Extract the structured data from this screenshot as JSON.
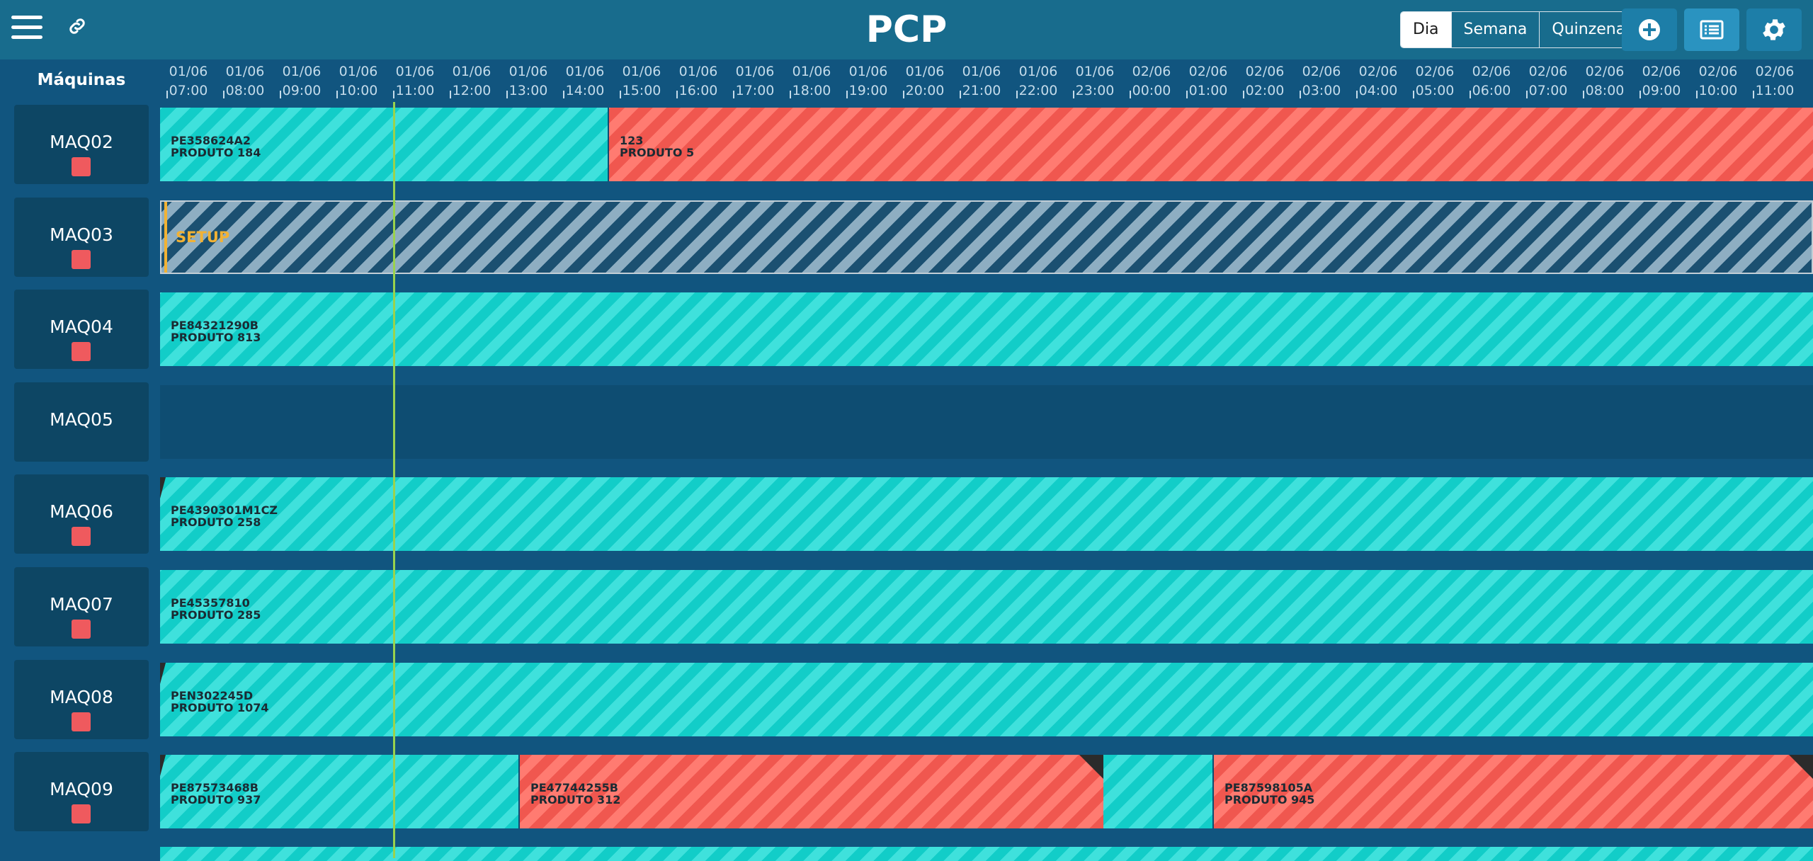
{
  "header": {
    "title": "PCP",
    "view_options": [
      "Dia",
      "Semana",
      "Quinzena"
    ],
    "active_view": "Dia",
    "icons": [
      "menu-icon",
      "link-icon",
      "add-icon",
      "list-icon",
      "gear-icon"
    ]
  },
  "timeline": {
    "machines_title": "Máquinas",
    "ticks": [
      {
        "date": "01/06",
        "time": "07:00"
      },
      {
        "date": "01/06",
        "time": "08:00"
      },
      {
        "date": "01/06",
        "time": "09:00"
      },
      {
        "date": "01/06",
        "time": "10:00"
      },
      {
        "date": "01/06",
        "time": "11:00"
      },
      {
        "date": "01/06",
        "time": "12:00"
      },
      {
        "date": "01/06",
        "time": "13:00"
      },
      {
        "date": "01/06",
        "time": "14:00"
      },
      {
        "date": "01/06",
        "time": "15:00"
      },
      {
        "date": "01/06",
        "time": "16:00"
      },
      {
        "date": "01/06",
        "time": "17:00"
      },
      {
        "date": "01/06",
        "time": "18:00"
      },
      {
        "date": "01/06",
        "time": "19:00"
      },
      {
        "date": "01/06",
        "time": "20:00"
      },
      {
        "date": "01/06",
        "time": "21:00"
      },
      {
        "date": "01/06",
        "time": "22:00"
      },
      {
        "date": "01/06",
        "time": "23:00"
      },
      {
        "date": "02/06",
        "time": "00:00"
      },
      {
        "date": "02/06",
        "time": "01:00"
      },
      {
        "date": "02/06",
        "time": "02:00"
      },
      {
        "date": "02/06",
        "time": "03:00"
      },
      {
        "date": "02/06",
        "time": "04:00"
      },
      {
        "date": "02/06",
        "time": "05:00"
      },
      {
        "date": "02/06",
        "time": "06:00"
      },
      {
        "date": "02/06",
        "time": "07:00"
      },
      {
        "date": "02/06",
        "time": "08:00"
      },
      {
        "date": "02/06",
        "time": "09:00"
      },
      {
        "date": "02/06",
        "time": "10:00"
      },
      {
        "date": "02/06",
        "time": "11:00"
      }
    ]
  },
  "colors": {
    "header_bg": "#186c8d",
    "page_bg": "#11557f",
    "job_cyan": "#12cdc8",
    "job_red": "#f0574f",
    "setup_accent": "#f2b234",
    "status_red": "#ef5a5e",
    "now_line": "#9ad24d"
  },
  "machines": [
    {
      "name": "MAQ02",
      "status": true,
      "jobs": [
        {
          "type": "cyan",
          "order": "PE358624A2",
          "product": "PRODUTO 184"
        },
        {
          "type": "red",
          "order": "123",
          "product": "PRODUTO 5"
        }
      ]
    },
    {
      "name": "MAQ03",
      "status": true,
      "jobs": [
        {
          "type": "setup",
          "label": "SETUP"
        }
      ]
    },
    {
      "name": "MAQ04",
      "status": true,
      "jobs": [
        {
          "type": "cyan",
          "order": "PE84321290B",
          "product": "PRODUTO 813"
        }
      ]
    },
    {
      "name": "MAQ05",
      "status": false,
      "jobs": []
    },
    {
      "name": "MAQ06",
      "status": true,
      "jobs": [
        {
          "type": "cyan",
          "order": "PE4390301M1CZ",
          "product": "PRODUTO 258"
        }
      ]
    },
    {
      "name": "MAQ07",
      "status": true,
      "jobs": [
        {
          "type": "cyan",
          "order": "PE45357810",
          "product": "PRODUTO 285"
        }
      ]
    },
    {
      "name": "MAQ08",
      "status": true,
      "jobs": [
        {
          "type": "cyan",
          "order": "PEN302245D",
          "product": "PRODUTO 1074"
        }
      ]
    },
    {
      "name": "MAQ09",
      "status": true,
      "jobs": [
        {
          "type": "cyan",
          "order": "PE87573468B",
          "product": "PRODUTO 937"
        },
        {
          "type": "red",
          "order": "PE47744255B",
          "product": "PRODUTO 312"
        },
        {
          "type": "cyan",
          "order": "",
          "product": ""
        },
        {
          "type": "red",
          "order": "PE87598105A",
          "product": "PRODUTO 945"
        }
      ]
    }
  ]
}
